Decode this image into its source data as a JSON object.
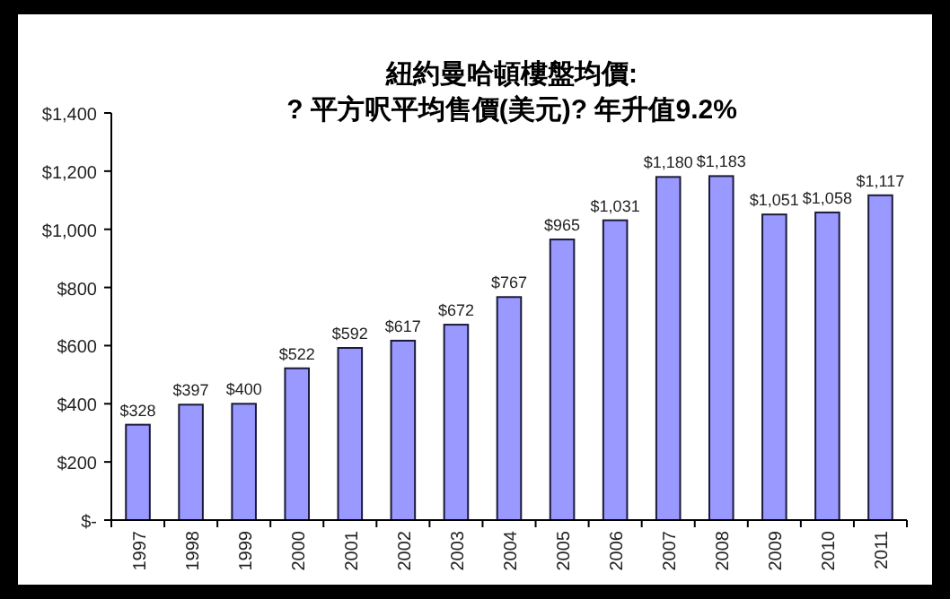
{
  "chart_data": {
    "type": "bar",
    "title": "紐約曼哈頓樓盤均價:",
    "subtitle": "? 平方呎平均售價(美元)? 年升值9.2%",
    "categories": [
      "1997",
      "1998",
      "1999",
      "2000",
      "2001",
      "2002",
      "2003",
      "2004",
      "2005",
      "2006",
      "2007",
      "2008",
      "2009",
      "2010",
      "2011"
    ],
    "values": [
      328,
      397,
      400,
      522,
      592,
      617,
      672,
      767,
      965,
      1031,
      1180,
      1183,
      1051,
      1058,
      1117
    ],
    "value_labels": [
      "$328",
      "$397",
      "$400",
      "$522",
      "$592",
      "$617",
      "$672",
      "$767",
      "$965",
      "$1,031",
      "$1,180",
      "$1,183",
      "$1,051",
      "$1,058",
      "$1,117"
    ],
    "color": "#9999ff",
    "ylim": [
      0,
      1400
    ],
    "yticks": [
      {
        "value": 0,
        "label": "$-"
      },
      {
        "value": 200,
        "label": "$200"
      },
      {
        "value": 400,
        "label": "$400"
      },
      {
        "value": 600,
        "label": "$600"
      },
      {
        "value": 800,
        "label": "$800"
      },
      {
        "value": 1000,
        "label": "$1,000"
      },
      {
        "value": 1200,
        "label": "$1,200"
      },
      {
        "value": 1400,
        "label": "$1,400"
      }
    ],
    "grid": false
  }
}
